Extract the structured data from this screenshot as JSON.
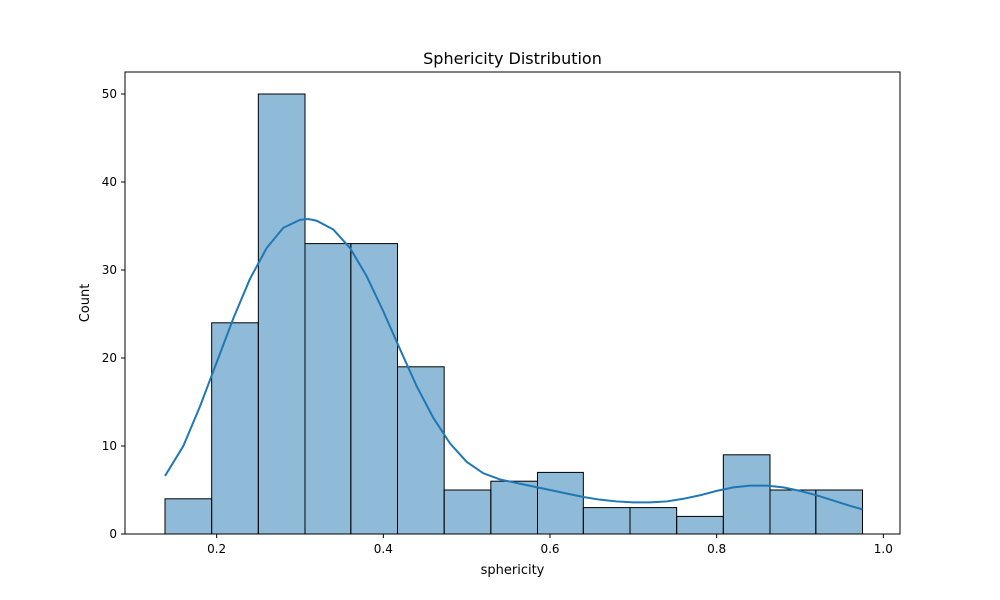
{
  "chart_data": {
    "type": "histogram",
    "title": "Sphericity Distribution",
    "xlabel": "sphericity",
    "ylabel": "Count",
    "xlim": [
      0.09,
      1.02
    ],
    "ylim": [
      0,
      52.5
    ],
    "xticks": [
      0.2,
      0.4,
      0.6,
      0.8,
      1.0
    ],
    "xtick_labels": [
      "0.2",
      "0.4",
      "0.6",
      "0.8",
      "1.0"
    ],
    "yticks": [
      0,
      10,
      20,
      30,
      40,
      50
    ],
    "ytick_labels": [
      "0",
      "10",
      "20",
      "30",
      "40",
      "50"
    ],
    "bins": [
      {
        "x0": 0.138,
        "x1": 0.194,
        "count": 4
      },
      {
        "x0": 0.194,
        "x1": 0.25,
        "count": 24
      },
      {
        "x0": 0.25,
        "x1": 0.306,
        "count": 50
      },
      {
        "x0": 0.306,
        "x1": 0.361,
        "count": 33
      },
      {
        "x0": 0.361,
        "x1": 0.417,
        "count": 33
      },
      {
        "x0": 0.417,
        "x1": 0.473,
        "count": 19
      },
      {
        "x0": 0.473,
        "x1": 0.529,
        "count": 5
      },
      {
        "x0": 0.529,
        "x1": 0.585,
        "count": 6
      },
      {
        "x0": 0.585,
        "x1": 0.64,
        "count": 7
      },
      {
        "x0": 0.64,
        "x1": 0.696,
        "count": 3
      },
      {
        "x0": 0.696,
        "x1": 0.752,
        "count": 3
      },
      {
        "x0": 0.752,
        "x1": 0.808,
        "count": 2
      },
      {
        "x0": 0.808,
        "x1": 0.864,
        "count": 9
      },
      {
        "x0": 0.864,
        "x1": 0.919,
        "count": 5
      },
      {
        "x0": 0.919,
        "x1": 0.975,
        "count": 5
      }
    ],
    "kde": {
      "x": [
        0.138,
        0.16,
        0.18,
        0.2,
        0.22,
        0.24,
        0.26,
        0.28,
        0.3,
        0.31,
        0.32,
        0.34,
        0.36,
        0.38,
        0.4,
        0.42,
        0.44,
        0.46,
        0.48,
        0.5,
        0.52,
        0.54,
        0.56,
        0.58,
        0.6,
        0.62,
        0.64,
        0.66,
        0.68,
        0.7,
        0.72,
        0.74,
        0.76,
        0.78,
        0.8,
        0.82,
        0.84,
        0.86,
        0.88,
        0.9,
        0.92,
        0.94,
        0.96,
        0.975
      ],
      "y": [
        6.6,
        10.0,
        14.5,
        19.5,
        24.5,
        29.0,
        32.5,
        34.8,
        35.7,
        35.8,
        35.6,
        34.6,
        32.5,
        29.3,
        25.3,
        21.0,
        16.8,
        13.2,
        10.3,
        8.2,
        6.9,
        6.2,
        5.8,
        5.4,
        5.0,
        4.6,
        4.2,
        3.9,
        3.7,
        3.6,
        3.6,
        3.7,
        4.0,
        4.4,
        4.9,
        5.3,
        5.5,
        5.5,
        5.3,
        4.9,
        4.4,
        3.8,
        3.2,
        2.8
      ]
    },
    "colors": {
      "bar_fill": "#1f77b4",
      "bar_fill_opacity": 0.5,
      "bar_edge": "#000000",
      "kde_line": "#1f77b4"
    },
    "grid": false,
    "legend": "none"
  }
}
